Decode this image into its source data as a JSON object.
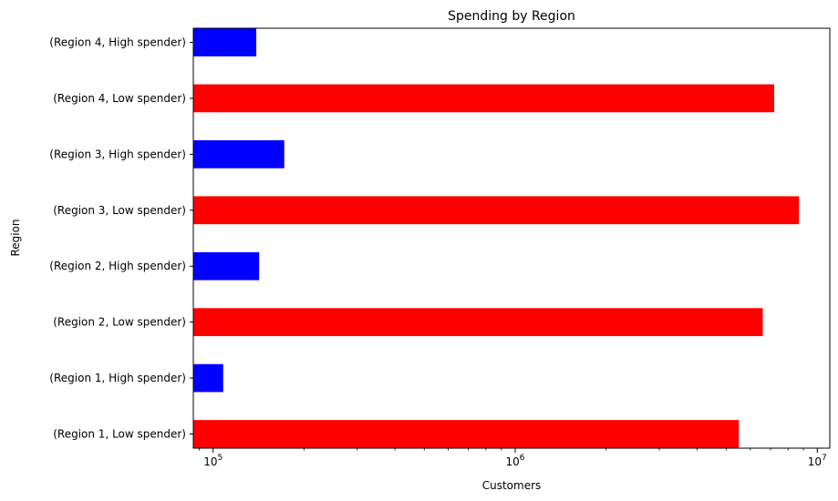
{
  "chart_data": {
    "type": "bar",
    "orientation": "horizontal",
    "title": "Spending by Region",
    "xlabel": "Customers",
    "ylabel": "Region",
    "xscale": "log",
    "xlim": [
      86000,
      11000000
    ],
    "x_tick_labels": [
      {
        "base": "10",
        "exp": "5",
        "value": 100000
      },
      {
        "base": "10",
        "exp": "6",
        "value": 1000000
      },
      {
        "base": "10",
        "exp": "7",
        "value": 10000000
      }
    ],
    "grid": false,
    "legend": "none",
    "categories": [
      "(Region 1, Low spender)",
      "(Region 1, High spender)",
      "(Region 2, Low spender)",
      "(Region 2, High spender)",
      "(Region 3, Low spender)",
      "(Region 3, High spender)",
      "(Region 4, Low spender)",
      "(Region 4, High spender)"
    ],
    "values": [
      5500000,
      108000,
      6600000,
      142000,
      8700000,
      172000,
      7200000,
      139000
    ],
    "colors": [
      "#ff0000",
      "#0000ff",
      "#ff0000",
      "#0000ff",
      "#ff0000",
      "#0000ff",
      "#ff0000",
      "#0000ff"
    ]
  }
}
